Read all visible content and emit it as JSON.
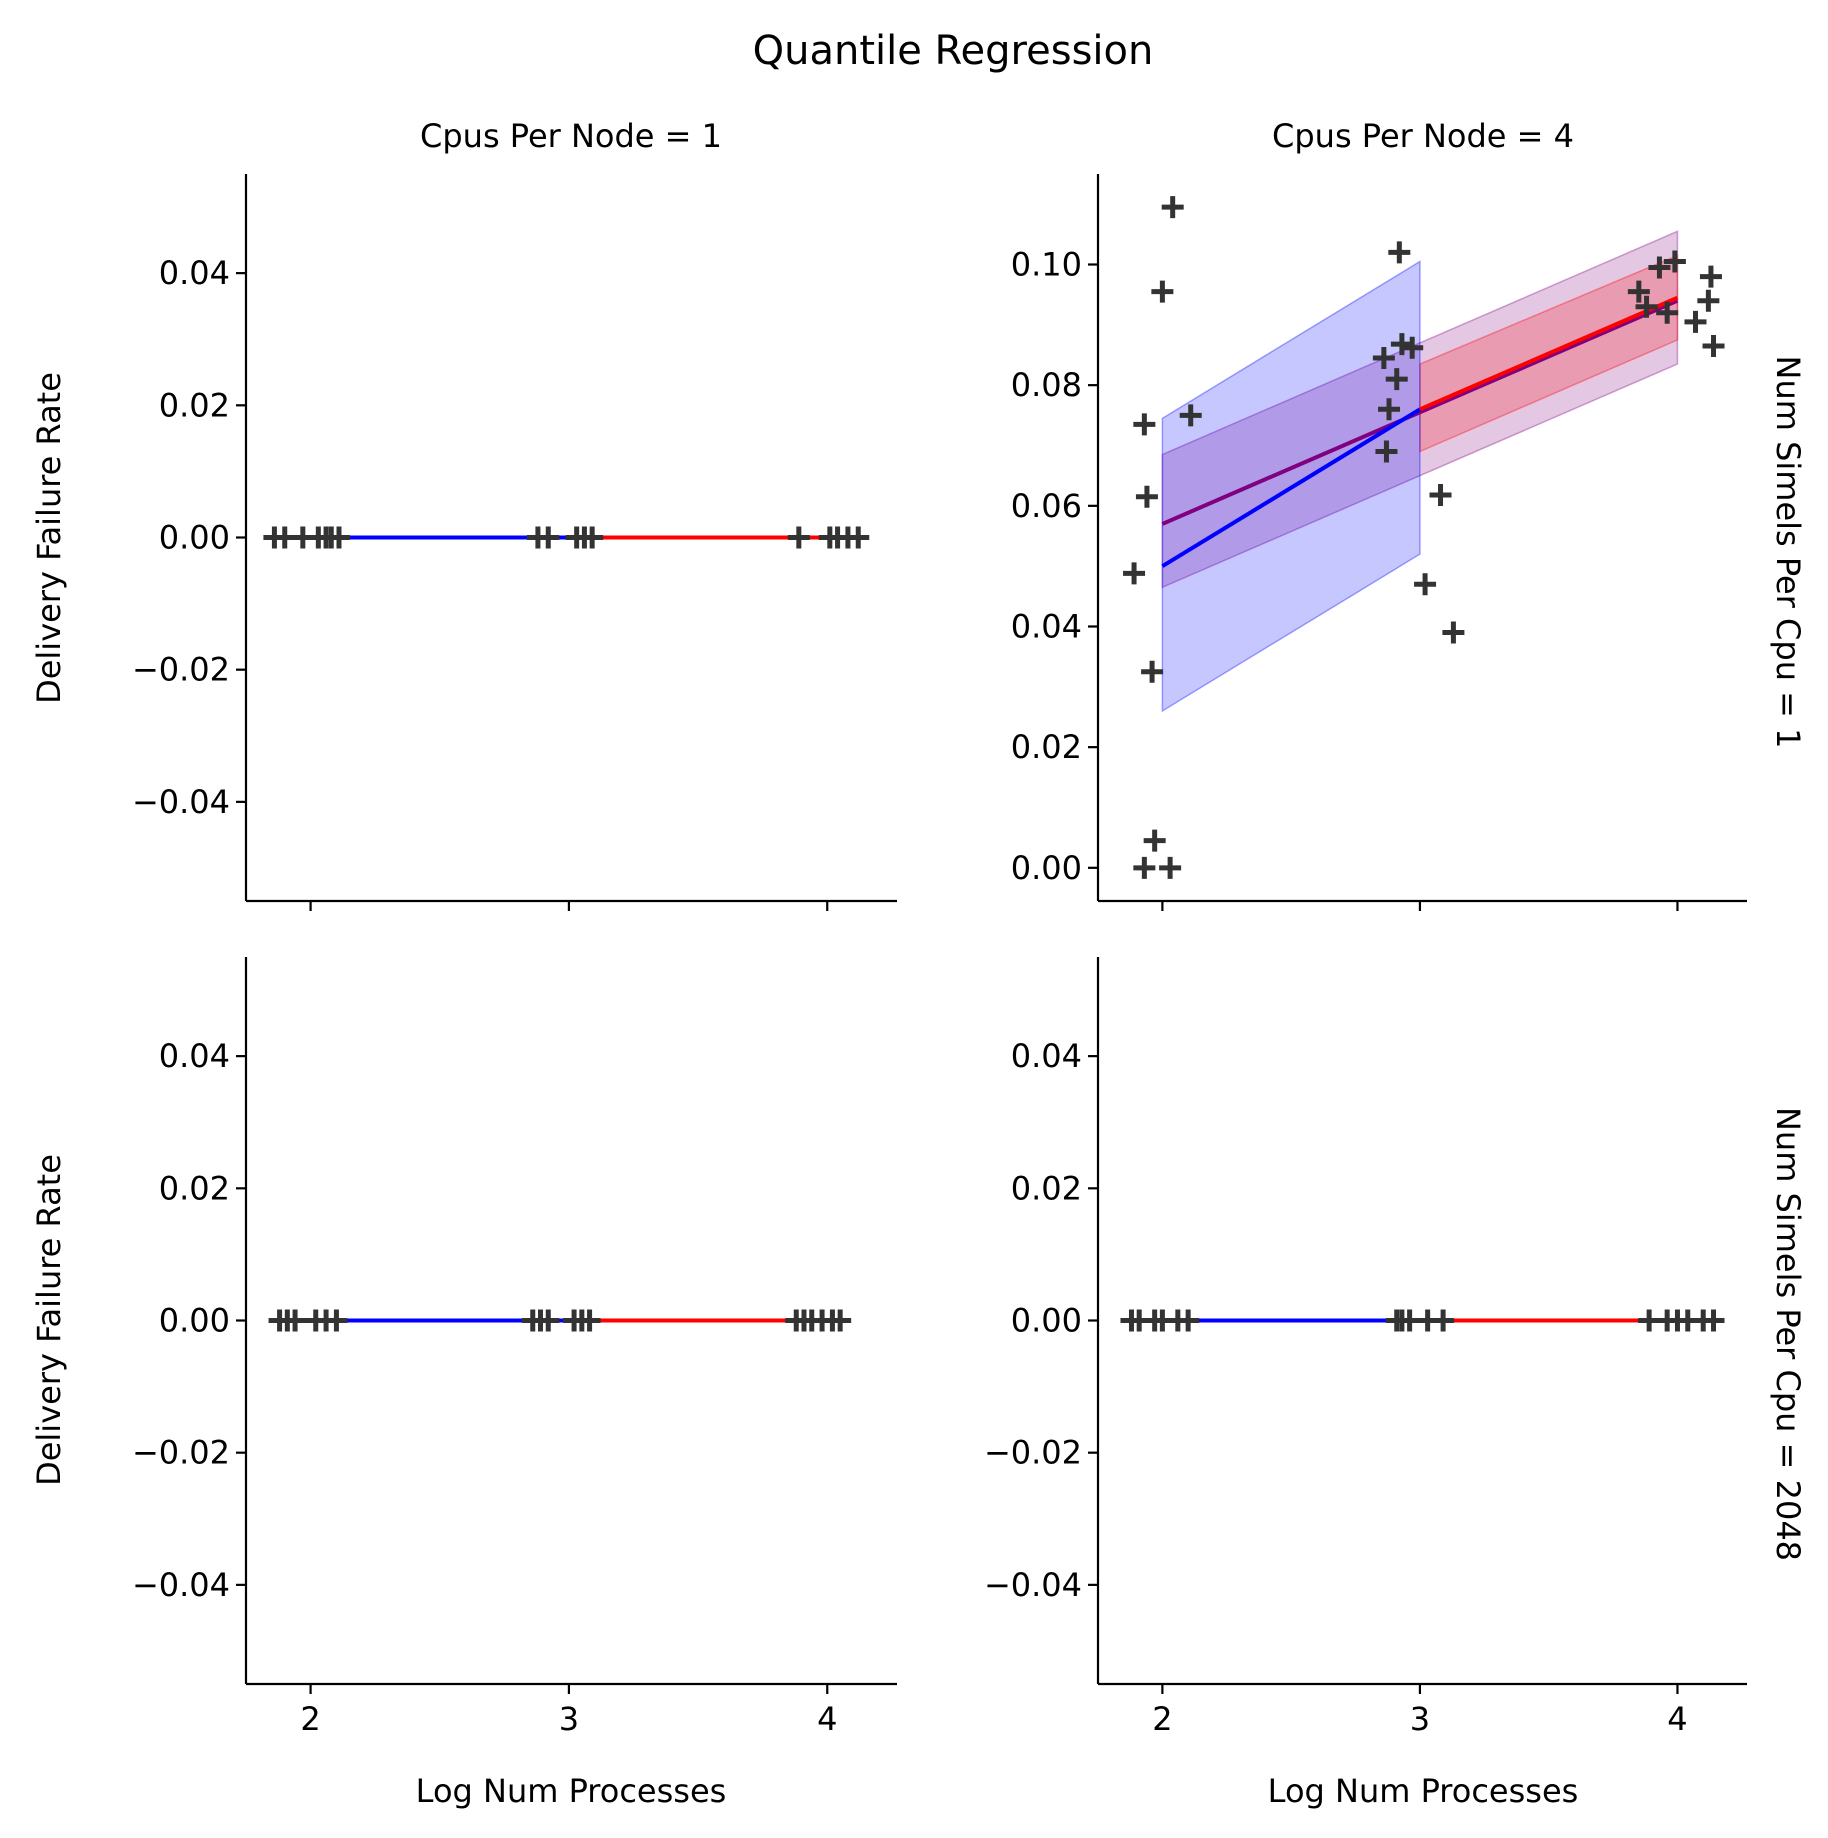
{
  "figure": {
    "title": "Quantile Regression",
    "xlabel": "Log Num Processes",
    "ylabel": "Delivery Failure Rate",
    "col_titles": [
      "Cpus Per Node = 1",
      "Cpus Per Node = 4"
    ],
    "row_titles": [
      "Num Simels Per Cpu = 1",
      "Num Simels Per Cpu = 2048"
    ],
    "colors": {
      "segment_low": "#0000ff",
      "segment_high": "#ff0000",
      "segment_overall": "#800080",
      "markers": "#333333"
    }
  },
  "chart_data": [
    {
      "type": "scatter",
      "row": 0,
      "col": 0,
      "xlim": [
        1.75,
        4.27
      ],
      "ylim": [
        -0.055,
        0.055
      ],
      "xticks": [
        2,
        3,
        4
      ],
      "xtick_labels": [
        "2",
        "3",
        "4"
      ],
      "yticks": [
        -0.04,
        -0.02,
        0.0,
        0.02,
        0.04
      ],
      "ytick_labels": [
        "−0.04",
        "−0.02",
        "0.00",
        "0.02",
        "0.04"
      ],
      "points": [
        [
          1.86,
          0
        ],
        [
          1.9,
          0
        ],
        [
          1.97,
          0
        ],
        [
          2.03,
          0
        ],
        [
          2.06,
          0
        ],
        [
          2.08,
          0
        ],
        [
          2.11,
          0
        ],
        [
          2.88,
          0
        ],
        [
          2.92,
          0
        ],
        [
          3.03,
          0
        ],
        [
          3.06,
          0
        ],
        [
          3.09,
          0
        ],
        [
          3.89,
          0
        ],
        [
          4.01,
          0
        ],
        [
          4.04,
          0
        ],
        [
          4.08,
          0
        ],
        [
          4.12,
          0
        ]
      ],
      "fits": [
        {
          "color": "segment_low",
          "x": [
            2,
            3
          ],
          "y": [
            0,
            0
          ]
        },
        {
          "color": "segment_high",
          "x": [
            3,
            4
          ],
          "y": [
            0,
            0
          ]
        }
      ],
      "bands": []
    },
    {
      "type": "scatter",
      "row": 0,
      "col": 1,
      "xlim": [
        1.75,
        4.27
      ],
      "ylim": [
        -0.0055,
        0.115
      ],
      "xticks": [
        2,
        3,
        4
      ],
      "xtick_labels": [
        "2",
        "3",
        "4"
      ],
      "yticks": [
        0.0,
        0.02,
        0.04,
        0.06,
        0.08,
        0.1
      ],
      "ytick_labels": [
        "0.00",
        "0.02",
        "0.04",
        "0.06",
        "0.08",
        "0.10"
      ],
      "points": [
        [
          2.04,
          0.1095
        ],
        [
          2.0,
          0.0955
        ],
        [
          1.93,
          0.0735
        ],
        [
          1.94,
          0.0615
        ],
        [
          2.11,
          0.075
        ],
        [
          1.89,
          0.0488
        ],
        [
          1.96,
          0.0325
        ],
        [
          1.97,
          0.0045
        ],
        [
          1.93,
          0.0
        ],
        [
          2.03,
          0.0
        ],
        [
          2.92,
          0.102
        ],
        [
          2.86,
          0.0845
        ],
        [
          2.93,
          0.0868
        ],
        [
          2.97,
          0.0862
        ],
        [
          2.91,
          0.081
        ],
        [
          2.88,
          0.076
        ],
        [
          2.87,
          0.069
        ],
        [
          3.08,
          0.0618
        ],
        [
          3.02,
          0.047
        ],
        [
          3.13,
          0.039
        ],
        [
          3.85,
          0.0955
        ],
        [
          3.88,
          0.093
        ],
        [
          3.93,
          0.0995
        ],
        [
          3.99,
          0.1005
        ],
        [
          3.96,
          0.092
        ],
        [
          4.13,
          0.098
        ],
        [
          4.12,
          0.094
        ],
        [
          4.07,
          0.0905
        ],
        [
          4.14,
          0.0865
        ]
      ],
      "fits": [
        {
          "color": "segment_overall",
          "x": [
            2,
            4
          ],
          "y": [
            0.057,
            0.094
          ]
        },
        {
          "color": "segment_low",
          "x": [
            2,
            3
          ],
          "y": [
            0.05,
            0.076
          ]
        },
        {
          "color": "segment_high",
          "x": [
            3,
            4
          ],
          "y": [
            0.076,
            0.0945
          ]
        }
      ],
      "bands": [
        {
          "color": "segment_overall",
          "opacity": 0.22,
          "x": [
            2,
            4
          ],
          "lower": [
            0.0465,
            0.0835
          ],
          "upper": [
            0.0685,
            0.1055
          ]
        },
        {
          "color": "segment_high",
          "opacity": 0.22,
          "x": [
            3,
            4
          ],
          "lower": [
            0.069,
            0.0875
          ],
          "upper": [
            0.0835,
            0.1015
          ]
        },
        {
          "color": "segment_low",
          "opacity": 0.22,
          "x": [
            2,
            3
          ],
          "lower": [
            0.026,
            0.052
          ],
          "upper": [
            0.0745,
            0.1005
          ]
        }
      ]
    },
    {
      "type": "scatter",
      "row": 1,
      "col": 0,
      "xlim": [
        1.75,
        4.27
      ],
      "ylim": [
        -0.055,
        0.055
      ],
      "xticks": [
        2,
        3,
        4
      ],
      "xtick_labels": [
        "2",
        "3",
        "4"
      ],
      "yticks": [
        -0.04,
        -0.02,
        0.0,
        0.02,
        0.04
      ],
      "ytick_labels": [
        "−0.04",
        "−0.02",
        "0.00",
        "0.02",
        "0.04"
      ],
      "points": [
        [
          1.88,
          0
        ],
        [
          1.91,
          0
        ],
        [
          1.94,
          0
        ],
        [
          2.02,
          0
        ],
        [
          2.06,
          0
        ],
        [
          2.1,
          0
        ],
        [
          2.86,
          0
        ],
        [
          2.89,
          0
        ],
        [
          2.92,
          0
        ],
        [
          3.02,
          0
        ],
        [
          3.05,
          0
        ],
        [
          3.08,
          0
        ],
        [
          3.88,
          0
        ],
        [
          3.91,
          0
        ],
        [
          3.94,
          0
        ],
        [
          3.98,
          0
        ],
        [
          4.02,
          0
        ],
        [
          4.05,
          0
        ]
      ],
      "fits": [
        {
          "color": "segment_low",
          "x": [
            2,
            3
          ],
          "y": [
            0,
            0
          ]
        },
        {
          "color": "segment_high",
          "x": [
            3,
            4
          ],
          "y": [
            0,
            0
          ]
        }
      ],
      "bands": []
    },
    {
      "type": "scatter",
      "row": 1,
      "col": 1,
      "xlim": [
        1.75,
        4.27
      ],
      "ylim": [
        -0.055,
        0.055
      ],
      "xticks": [
        2,
        3,
        4
      ],
      "xtick_labels": [
        "2",
        "3",
        "4"
      ],
      "yticks": [
        -0.04,
        -0.02,
        0.0,
        0.02,
        0.04
      ],
      "ytick_labels": [
        "−0.04",
        "−0.02",
        "0.00",
        "0.02",
        "0.04"
      ],
      "points": [
        [
          1.88,
          0
        ],
        [
          1.91,
          0
        ],
        [
          1.97,
          0
        ],
        [
          2.0,
          0
        ],
        [
          2.06,
          0
        ],
        [
          2.1,
          0
        ],
        [
          2.91,
          0
        ],
        [
          2.93,
          0
        ],
        [
          2.96,
          0
        ],
        [
          3.03,
          0
        ],
        [
          3.09,
          0
        ],
        [
          3.89,
          0
        ],
        [
          3.96,
          0
        ],
        [
          4.0,
          0
        ],
        [
          4.04,
          0
        ],
        [
          4.1,
          0
        ],
        [
          4.14,
          0
        ]
      ],
      "fits": [
        {
          "color": "segment_low",
          "x": [
            2,
            3
          ],
          "y": [
            0,
            0
          ]
        },
        {
          "color": "segment_high",
          "x": [
            3,
            4
          ],
          "y": [
            0,
            0
          ]
        }
      ],
      "bands": []
    }
  ]
}
